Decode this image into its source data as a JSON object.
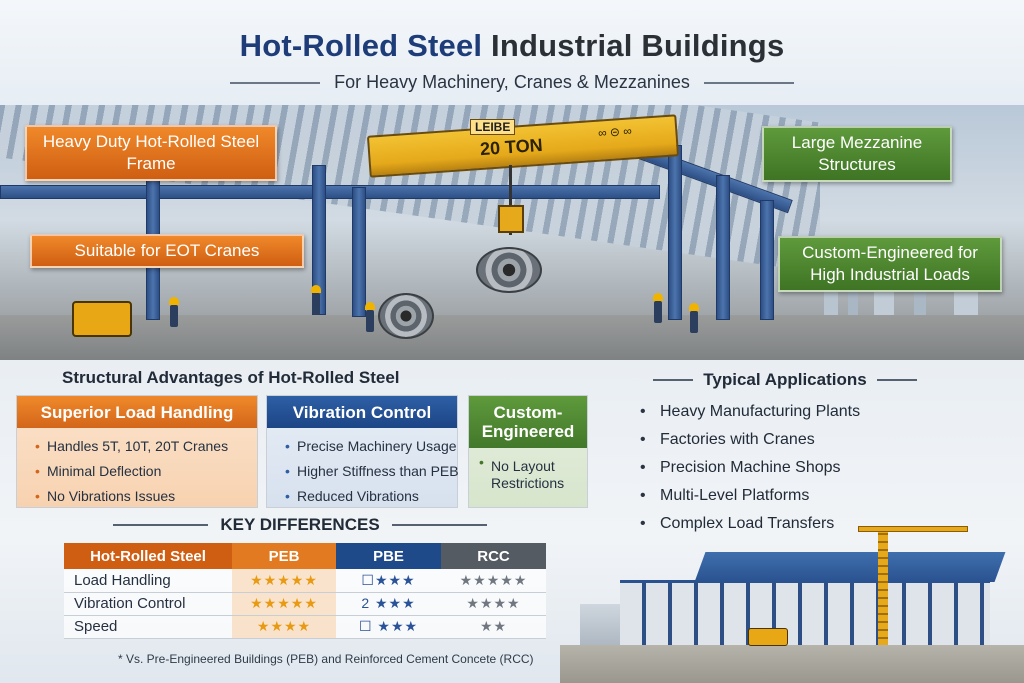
{
  "header": {
    "title_blue": "Hot-Rolled Steel",
    "title_dark": "Industrial Buildings",
    "subtitle": "For Heavy Machinery, Cranes & Mezzanines"
  },
  "hero": {
    "crane_capacity": "20 TON",
    "crane_tag": "LEIBE",
    "crane_brand": "∞ ⊝ ∞"
  },
  "callouts": {
    "frame": "Heavy Duty Hot-Rolled Steel Frame",
    "eot": "Suitable for EOT Cranes",
    "mezzanine": "Large Mezzanine Structures",
    "custom": "Custom-Engineered for High Industrial Loads"
  },
  "advantages": {
    "title": "Structural Advantages of Hot-Rolled Steel",
    "boxes": [
      {
        "heading": "Superior Load Handling",
        "items": [
          "Handles 5T, 10T, 20T Cranes",
          "Minimal Deflection",
          "No Vibrations Issues"
        ]
      },
      {
        "heading": "Vibration Control",
        "items": [
          "Precise Machinery Usage",
          "Higher Stiffness than PEB",
          "Reduced Vibrations"
        ]
      },
      {
        "heading": "Custom-Engineered",
        "items": [
          "No Layout Restrictions"
        ]
      }
    ]
  },
  "applications": {
    "title": "Typical Applications",
    "items": [
      "Heavy Manufacturing Plants",
      "Factories with Cranes",
      "Precision Machine Shops",
      "Multi-Level Platforms",
      "Complex Load Transfers"
    ]
  },
  "key_differences": {
    "title": "KEY DIFFERENCES",
    "columns": [
      "Hot-Rolled Steel",
      "PEB",
      "PBE",
      "RCC"
    ],
    "rows": [
      {
        "label": "Load Handling",
        "peb": "★★★★★",
        "pbe": "☐★★★",
        "rcc": "★★★★★"
      },
      {
        "label": "Vibration Control",
        "peb": "★★★★★",
        "pbe": "2 ★★★",
        "rcc": "★★★★"
      },
      {
        "label": "Speed",
        "peb": "★★★★",
        "pbe": "☐ ★★★",
        "rcc": "★★"
      }
    ],
    "footnote": "* Vs. Pre-Engineered Buildings (PEB) and Reinforced Cement Concete (RCC)"
  },
  "colors": {
    "title_blue": "#1d3c78",
    "orange": "#cf5e12",
    "green": "#42782a",
    "blue": "#1f4a8a",
    "gray": "#555b63"
  }
}
